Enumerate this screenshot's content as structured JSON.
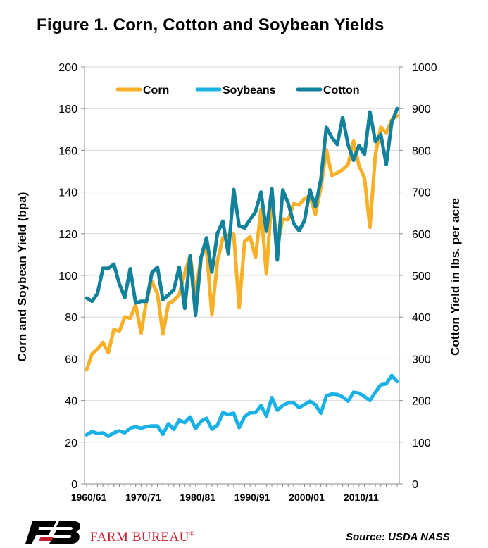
{
  "title": "Figure 1. Corn, Cotton and Soybean Yields",
  "source": "Source: USDA NASS",
  "logo_text": "FARM BUREAU",
  "logo_mark": "®",
  "chart_data": {
    "type": "line",
    "x_start_year": 1960,
    "x_tick_labels": [
      "1960/61",
      "1970/71",
      "1980/81",
      "1990/91",
      "2000/01",
      "2010/11"
    ],
    "ylabel_left": "Corn and Soybean Yield (bpa)",
    "ylabel_right": "Cotton Yield in lbs. per acre",
    "ylim_left": [
      0,
      200
    ],
    "ylim_right": [
      0,
      1000
    ],
    "yticks_left": [
      0,
      20,
      40,
      60,
      80,
      100,
      120,
      140,
      160,
      180,
      200
    ],
    "yticks_right": [
      0,
      100,
      200,
      300,
      400,
      500,
      600,
      700,
      800,
      900,
      1000
    ],
    "grid": "horizontal",
    "legend_placement": "top",
    "series": [
      {
        "name": "Corn",
        "axis": "left",
        "color": "#f7b027",
        "values": [
          54.7,
          62.4,
          64.7,
          67.9,
          62.9,
          74.1,
          73.1,
          80.1,
          79.5,
          85.9,
          72.4,
          88.1,
          97.0,
          91.3,
          71.9,
          86.4,
          88.0,
          90.8,
          101.0,
          109.5,
          91.0,
          108.9,
          113.2,
          81.1,
          106.7,
          118.0,
          119.4,
          119.8,
          84.6,
          116.3,
          118.5,
          108.6,
          131.5,
          100.7,
          138.6,
          113.5,
          127.1,
          126.7,
          134.4,
          133.8,
          136.9,
          138.2,
          129.3,
          142.2,
          160.3,
          148.0,
          149.1,
          150.7,
          153.3,
          164.4,
          152.6,
          146.8,
          123.1,
          158.1,
          171.0,
          168.4,
          174.6,
          176.6
        ]
      },
      {
        "name": "Soybeans",
        "axis": "left",
        "color": "#1ab2e5",
        "values": [
          23.5,
          25.1,
          24.2,
          24.4,
          22.8,
          24.5,
          25.4,
          24.5,
          26.7,
          27.4,
          26.7,
          27.5,
          27.8,
          27.8,
          23.7,
          28.9,
          26.1,
          30.6,
          29.4,
          32.1,
          26.5,
          30.1,
          31.5,
          26.2,
          28.1,
          34.1,
          33.3,
          33.9,
          27.0,
          32.3,
          34.1,
          34.2,
          37.6,
          32.6,
          41.4,
          35.3,
          37.6,
          38.9,
          38.9,
          36.6,
          38.1,
          39.6,
          38.0,
          33.9,
          42.2,
          43.1,
          42.9,
          41.7,
          39.7,
          44.0,
          43.5,
          41.9,
          40.0,
          44.0,
          47.5,
          48.0,
          52.0,
          49.1
        ]
      },
      {
        "name": "Cotton",
        "axis": "right",
        "color": "#12819c",
        "values": [
          446,
          438,
          457,
          517,
          517,
          527,
          480,
          447,
          516,
          434,
          438,
          438,
          507,
          520,
          442,
          453,
          465,
          520,
          421,
          547,
          404,
          543,
          590,
          508,
          600,
          630,
          552,
          706,
          619,
          614,
          634,
          652,
          700,
          606,
          708,
          537,
          705,
          673,
          625,
          607,
          632,
          705,
          665,
          730,
          855,
          831,
          814,
          879,
          813,
          776,
          812,
          790,
          892,
          821,
          838,
          766,
          867,
          900
        ]
      }
    ]
  }
}
